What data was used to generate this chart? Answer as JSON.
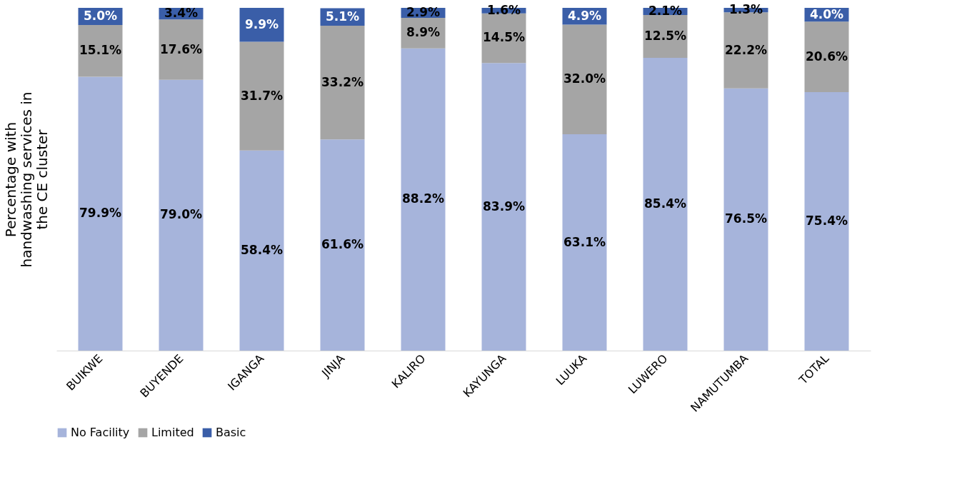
{
  "chart_data": {
    "type": "bar",
    "stacked": true,
    "ylabel": "Percentage with\nhandwashing services in\nthe CE cluster",
    "categories": [
      "BUIKWE",
      "BUYENDE",
      "IGANGA",
      "JINJA",
      "KALIRO",
      "KAYUNGA",
      "LUUKA",
      "LUWERO",
      "NAMUTUMBA",
      "TOTAL"
    ],
    "ylim": [
      0,
      100
    ],
    "tick_labels": "x",
    "grid": false,
    "legend": "bottom",
    "series": [
      {
        "name": "No Facility",
        "color": "#a6b4db",
        "values": [
          79.9,
          79.0,
          58.4,
          61.6,
          88.2,
          83.9,
          63.1,
          85.4,
          76.5,
          75.4
        ],
        "value_labels": [
          "79.9%",
          "79.0%",
          "58.4%",
          "61.6%",
          "88.2%",
          "83.9%",
          "63.1%",
          "85.4%",
          "76.5%",
          "75.4%"
        ]
      },
      {
        "name": "Limited",
        "color": "#a5a5a5",
        "values": [
          15.1,
          17.6,
          31.7,
          33.2,
          8.9,
          14.5,
          32.0,
          12.5,
          22.2,
          20.6
        ],
        "value_labels": [
          "15.1%",
          "17.6%",
          "31.7%",
          "33.2%",
          "8.9%",
          "14.5%",
          "32.0%",
          "12.5%",
          "22.2%",
          "20.6%"
        ]
      },
      {
        "name": "Basic",
        "color": "#3a5ea8",
        "values": [
          5.0,
          3.4,
          9.9,
          5.1,
          2.9,
          1.6,
          4.9,
          2.1,
          1.3,
          4.0
        ],
        "value_labels": [
          "5.0%",
          "3.4%",
          "9.9%",
          "5.1%",
          "2.9%",
          "1.6%",
          "4.9%",
          "2.1%",
          "1.3%",
          "4.0%"
        ]
      }
    ]
  }
}
